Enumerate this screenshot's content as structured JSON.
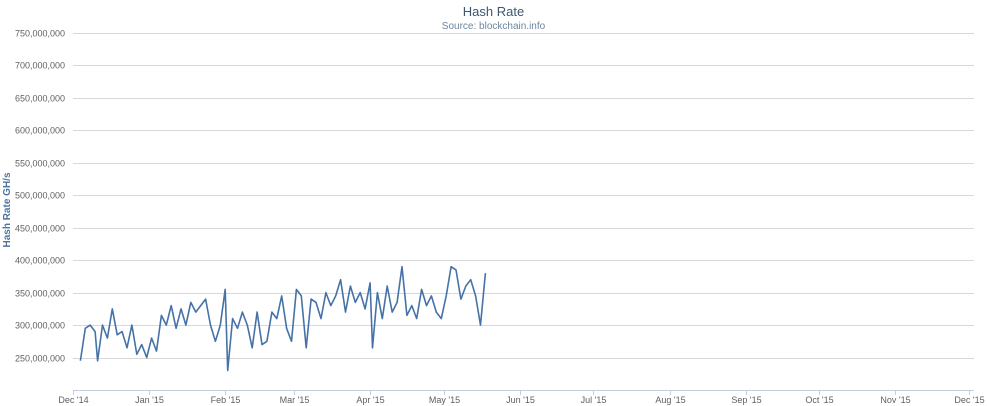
{
  "chart_data": {
    "type": "line",
    "title": "Hash Rate",
    "subtitle": "Source: blockchain.info",
    "ylabel": "Hash Rate GH/s",
    "xlabel": "",
    "ylim": [
      200000000,
      750000000
    ],
    "y_ticks": [
      250000000,
      300000000,
      350000000,
      400000000,
      450000000,
      500000000,
      550000000,
      600000000,
      650000000,
      700000000,
      750000000
    ],
    "y_tick_labels": [
      "250,000,000",
      "300,000,000",
      "350,000,000",
      "400,000,000",
      "450,000,000",
      "500,000,000",
      "550,000,000",
      "600,000,000",
      "650,000,000",
      "700,000,000",
      "750,000,000"
    ],
    "x_ticks": [
      "2014-12-01",
      "2015-01-01",
      "2015-02-01",
      "2015-03-01",
      "2015-04-01",
      "2015-05-01",
      "2015-06-01",
      "2015-07-01",
      "2015-08-01",
      "2015-09-01",
      "2015-10-01",
      "2015-11-01",
      "2015-12-01"
    ],
    "x_tick_labels": [
      "Dec '14",
      "Jan '15",
      "Feb '15",
      "Mar '15",
      "Apr '15",
      "May '15",
      "Jun '15",
      "Jul '15",
      "Aug '15",
      "Sep '15",
      "Oct '15",
      "Nov '15",
      "Dec '15"
    ],
    "xlim": [
      "2014-12-01",
      "2015-12-03"
    ],
    "grid": true,
    "legend": "none",
    "series": [
      {
        "color": "#4572a7",
        "points": [
          [
            "2014-12-04",
            245000000
          ],
          [
            "2014-12-06",
            295000000
          ],
          [
            "2014-12-08",
            300000000
          ],
          [
            "2014-12-10",
            290000000
          ],
          [
            "2014-12-11",
            245000000
          ],
          [
            "2014-12-13",
            300000000
          ],
          [
            "2014-12-15",
            280000000
          ],
          [
            "2014-12-17",
            325000000
          ],
          [
            "2014-12-19",
            285000000
          ],
          [
            "2014-12-21",
            290000000
          ],
          [
            "2014-12-23",
            265000000
          ],
          [
            "2014-12-25",
            300000000
          ],
          [
            "2014-12-27",
            255000000
          ],
          [
            "2014-12-29",
            270000000
          ],
          [
            "2014-12-31",
            250000000
          ],
          [
            "2015-01-02",
            280000000
          ],
          [
            "2015-01-04",
            260000000
          ],
          [
            "2015-01-06",
            315000000
          ],
          [
            "2015-01-08",
            300000000
          ],
          [
            "2015-01-10",
            330000000
          ],
          [
            "2015-01-12",
            295000000
          ],
          [
            "2015-01-14",
            325000000
          ],
          [
            "2015-01-16",
            300000000
          ],
          [
            "2015-01-18",
            335000000
          ],
          [
            "2015-01-20",
            320000000
          ],
          [
            "2015-01-22",
            330000000
          ],
          [
            "2015-01-24",
            340000000
          ],
          [
            "2015-01-26",
            300000000
          ],
          [
            "2015-01-28",
            275000000
          ],
          [
            "2015-01-30",
            300000000
          ],
          [
            "2015-02-01",
            355000000
          ],
          [
            "2015-02-02",
            230000000
          ],
          [
            "2015-02-04",
            310000000
          ],
          [
            "2015-02-06",
            295000000
          ],
          [
            "2015-02-08",
            320000000
          ],
          [
            "2015-02-10",
            300000000
          ],
          [
            "2015-02-12",
            265000000
          ],
          [
            "2015-02-14",
            320000000
          ],
          [
            "2015-02-16",
            270000000
          ],
          [
            "2015-02-18",
            275000000
          ],
          [
            "2015-02-20",
            320000000
          ],
          [
            "2015-02-22",
            310000000
          ],
          [
            "2015-02-24",
            345000000
          ],
          [
            "2015-02-26",
            295000000
          ],
          [
            "2015-02-28",
            275000000
          ],
          [
            "2015-03-02",
            355000000
          ],
          [
            "2015-03-04",
            345000000
          ],
          [
            "2015-03-06",
            265000000
          ],
          [
            "2015-03-08",
            340000000
          ],
          [
            "2015-03-10",
            335000000
          ],
          [
            "2015-03-12",
            310000000
          ],
          [
            "2015-03-14",
            350000000
          ],
          [
            "2015-03-16",
            330000000
          ],
          [
            "2015-03-18",
            345000000
          ],
          [
            "2015-03-20",
            370000000
          ],
          [
            "2015-03-22",
            320000000
          ],
          [
            "2015-03-24",
            360000000
          ],
          [
            "2015-03-26",
            335000000
          ],
          [
            "2015-03-28",
            350000000
          ],
          [
            "2015-03-30",
            325000000
          ],
          [
            "2015-04-01",
            365000000
          ],
          [
            "2015-04-02",
            265000000
          ],
          [
            "2015-04-04",
            350000000
          ],
          [
            "2015-04-06",
            310000000
          ],
          [
            "2015-04-08",
            360000000
          ],
          [
            "2015-04-10",
            320000000
          ],
          [
            "2015-04-12",
            335000000
          ],
          [
            "2015-04-14",
            390000000
          ],
          [
            "2015-04-16",
            315000000
          ],
          [
            "2015-04-18",
            330000000
          ],
          [
            "2015-04-20",
            310000000
          ],
          [
            "2015-04-22",
            355000000
          ],
          [
            "2015-04-24",
            330000000
          ],
          [
            "2015-04-26",
            345000000
          ],
          [
            "2015-04-28",
            320000000
          ],
          [
            "2015-04-30",
            310000000
          ],
          [
            "2015-05-02",
            345000000
          ],
          [
            "2015-05-04",
            390000000
          ],
          [
            "2015-05-06",
            385000000
          ],
          [
            "2015-05-08",
            340000000
          ],
          [
            "2015-05-10",
            360000000
          ],
          [
            "2015-05-12",
            370000000
          ],
          [
            "2015-05-14",
            345000000
          ],
          [
            "2015-05-16",
            300000000
          ],
          [
            "2015-05-18",
            380000000
          ]
        ]
      }
    ]
  }
}
